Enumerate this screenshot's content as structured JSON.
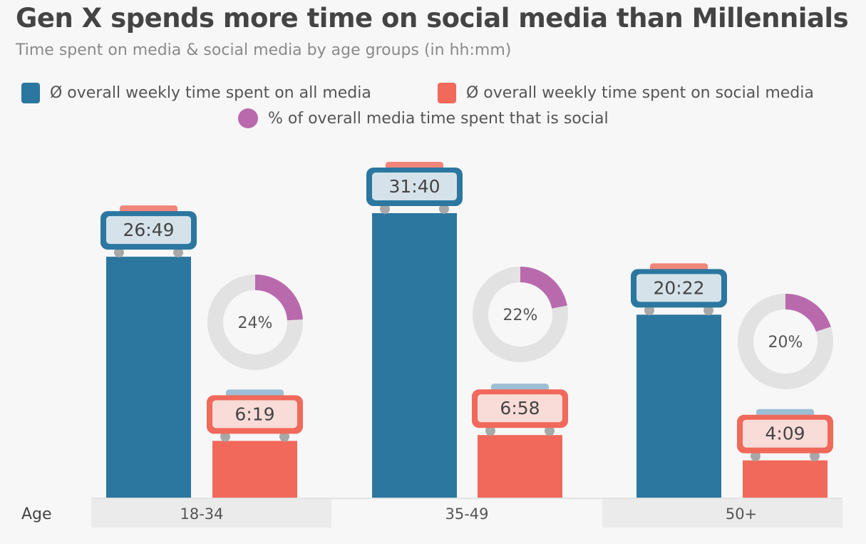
{
  "chart_data": {
    "type": "bar",
    "title": "Gen X spends more time on social media than Millennials",
    "subtitle": "Time spent on media & social media by age groups (in hh:mm)",
    "xlabel": "Age",
    "categories": [
      "18-34",
      "35-49",
      "50+"
    ],
    "series": [
      {
        "name": "Ø overall weekly time spent on all media",
        "color": "#2b77a0",
        "values": [
          "26:49",
          "31:40",
          "20:22"
        ],
        "hours": [
          26.82,
          31.67,
          20.37
        ]
      },
      {
        "name": "Ø overall weekly time spent on social media",
        "color": "#f0695a",
        "values": [
          "6:19",
          "6:58",
          "4:09"
        ],
        "hours": [
          6.32,
          6.97,
          4.15
        ]
      }
    ],
    "share": {
      "name": "% of overall media time spent that is social",
      "color": "#b96aad",
      "values": [
        24,
        22,
        20
      ],
      "labels": [
        "24%",
        "22%",
        "20%"
      ]
    },
    "grid": false,
    "legend": "top"
  }
}
